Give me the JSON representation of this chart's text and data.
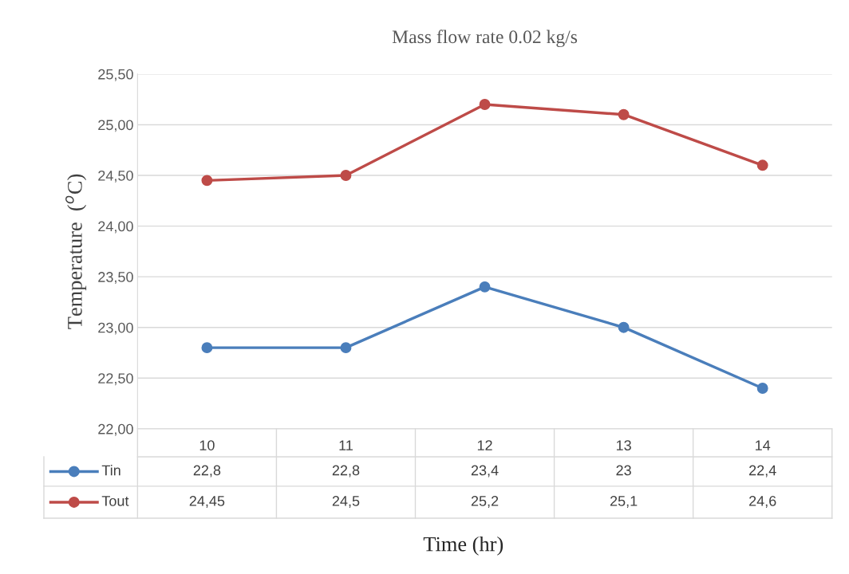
{
  "chart_data": {
    "type": "line",
    "title": "Mass flow rate 0.02 kg/s",
    "xlabel": "Time (hr)",
    "ylabel": "Temperature  ($^{o}$C)",
    "categories": [
      "10",
      "11",
      "12",
      "13",
      "14"
    ],
    "series": [
      {
        "name": "Tin",
        "color": "#4a7ebb",
        "values": [
          22.8,
          22.8,
          23.4,
          23,
          22.4
        ],
        "value_labels": [
          "22,8",
          "22,8",
          "23,4",
          "23",
          "22,4"
        ]
      },
      {
        "name": "Tout",
        "color": "#be4b48",
        "values": [
          24.45,
          24.5,
          25.2,
          25.1,
          24.6
        ],
        "value_labels": [
          "24,45",
          "24,5",
          "25,2",
          "25,1",
          "24,6"
        ]
      }
    ],
    "ylim": [
      22,
      25.5
    ],
    "yticks": [
      {
        "value": 22,
        "label": "22,00"
      },
      {
        "value": 22.5,
        "label": "22,50"
      },
      {
        "value": 23,
        "label": "23,00"
      },
      {
        "value": 23.5,
        "label": "23,50"
      },
      {
        "value": 24,
        "label": "24,00"
      },
      {
        "value": 24.5,
        "label": "24,50"
      },
      {
        "value": 25,
        "label": "25,00"
      },
      {
        "value": 25.5,
        "label": "25,50"
      }
    ],
    "grid": "y",
    "legend": "bottom",
    "marker": "circle",
    "line_style": "solid"
  }
}
